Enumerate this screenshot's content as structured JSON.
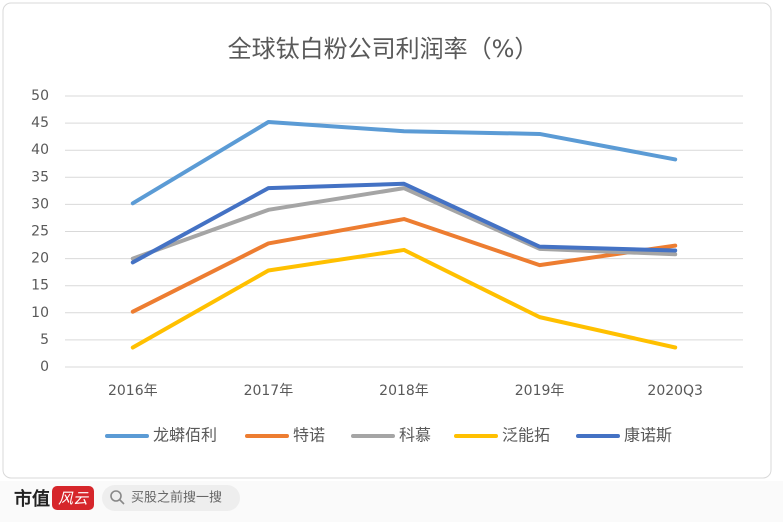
{
  "chart_data": {
    "type": "line",
    "title": "全球钛白粉公司利润率（%）",
    "categories": [
      "2016年",
      "2017年",
      "2018年",
      "2019年",
      "2020Q3"
    ],
    "series": [
      {
        "name": "龙蟒佰利",
        "color": "#5b9bd5",
        "values": [
          30.2,
          45.2,
          43.5,
          43,
          38.3
        ]
      },
      {
        "name": "特诺",
        "color": "#ed7d31",
        "values": [
          10.2,
          22.8,
          27.3,
          18.8,
          22.4
        ]
      },
      {
        "name": "科慕",
        "color": "#a5a5a5",
        "values": [
          20,
          29,
          33,
          21.8,
          20.8
        ]
      },
      {
        "name": "泛能拓",
        "color": "#ffc000",
        "values": [
          3.6,
          17.8,
          21.6,
          9.2,
          3.6
        ]
      },
      {
        "name": "康诺斯",
        "color": "#4472c4",
        "values": [
          19.3,
          33,
          33.8,
          22.2,
          21.5
        ]
      }
    ],
    "ylim": [
      0,
      50
    ],
    "yticks": [
      0,
      5,
      10,
      15,
      20,
      25,
      30,
      35,
      40,
      45,
      50
    ],
    "grid": true,
    "legend": "bottom"
  },
  "footer": {
    "brand": "市值",
    "brand_mark": "风云",
    "search": "买股之前搜一搜"
  }
}
